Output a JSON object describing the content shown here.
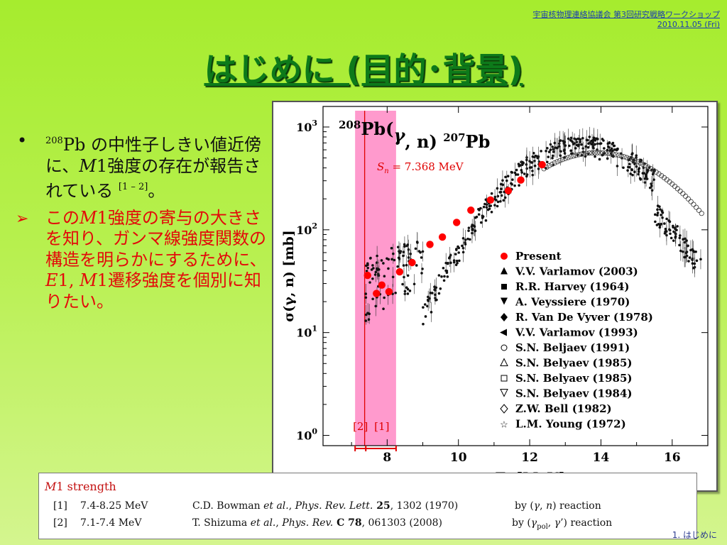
{
  "header": {
    "line1": "宇宙核物理連絡協議会 第3回研究戦略ワークショップ",
    "line2": "2010.11.05 (Fri)"
  },
  "title": "はじめに (目的･背景)",
  "bullet1": {
    "bullet": "•",
    "mass_number": "208",
    "element": "Pb",
    "text_a": " の中性子しきい値近傍に、",
    "m1": "M",
    "m1_num": "1",
    "text_b": "強度の存在が報告されている",
    "ref": "[1 – 2]",
    "end": "。"
  },
  "bullet2": {
    "arrow": "➢",
    "text_a": "この",
    "m1": "M",
    "m1_num": "1",
    "text_b": "強度の寄与の大きさを知り、ガンマ線強度関数の構造を明らかにするために、",
    "e1": "E",
    "e1_num": "1",
    "sep": ", ",
    "m1b": "M",
    "m1b_num": "1",
    "text_c": "遷移強度を個別に知りたい。"
  },
  "chart_data": {
    "type": "scatter",
    "reaction": {
      "target_mass": "208",
      "target": "Pb(",
      "gamma": "γ",
      "rest": ", n)",
      "product_mass": "207",
      "product": "Pb"
    },
    "xlabel": "E",
    "xlabel_sub": "γ",
    "xlabel_unit": " [MeV]",
    "ylabel": "σ(γ, n) [mb]",
    "xlim": [
      6.2,
      17.0
    ],
    "ylim_log10": [
      -0.1,
      3.2
    ],
    "log_y": true,
    "x_ticks": [
      "8",
      "10",
      "12",
      "14",
      "16"
    ],
    "x_tick_values": [
      8,
      10,
      12,
      14,
      16
    ],
    "y_ticks": [
      {
        "base": "10",
        "exp": "0",
        "value": 0
      },
      {
        "base": "10",
        "exp": "1",
        "value": 1
      },
      {
        "base": "10",
        "exp": "2",
        "value": 2
      },
      {
        "base": "10",
        "exp": "3",
        "value": 3
      }
    ],
    "threshold": {
      "label_s": "S",
      "label_sub": "n",
      "label_rest": " = 7.368 MeV",
      "x": 7.368
    },
    "band": {
      "x0": 7.1,
      "x1": 8.25
    },
    "band_labels": {
      "ref2": "[2]",
      "ref1": "[1]"
    },
    "legend_placement": "right",
    "present_series": {
      "name": "Present",
      "color": "#ff0000",
      "points": [
        [
          7.45,
          36
        ],
        [
          7.7,
          24
        ],
        [
          7.85,
          29
        ],
        [
          8.05,
          25
        ],
        [
          8.35,
          39
        ],
        [
          8.7,
          48
        ],
        [
          9.2,
          72
        ],
        [
          9.55,
          85
        ],
        [
          9.95,
          118
        ],
        [
          10.35,
          155
        ],
        [
          10.9,
          195
        ],
        [
          11.4,
          240
        ],
        [
          11.75,
          305
        ],
        [
          12.35,
          430
        ]
      ]
    },
    "legend": [
      {
        "name": "Present",
        "marker": "circle-red"
      },
      {
        "name": "V.V. Varlamov (2003)",
        "marker": "tri-up"
      },
      {
        "name": "R.R. Harvey (1964)",
        "marker": "square"
      },
      {
        "name": "A. Veyssiere (1970)",
        "marker": "tri-down"
      },
      {
        "name": "R. Van De Vyver (1978)",
        "marker": "diamond"
      },
      {
        "name": "V.V. Varlamov (1993)",
        "marker": "tri-left"
      },
      {
        "name": "S.N. Beljaev (1991)",
        "marker": "circle-open"
      },
      {
        "name": "S.N. Belyaev (1985)",
        "marker": "tri-open"
      },
      {
        "name": "S.N. Belyaev (1985)",
        "marker": "square-open"
      },
      {
        "name": "S.N. Belyaev (1984)",
        "marker": "tri-down-open"
      },
      {
        "name": "Z.W. Bell (1982)",
        "marker": "diamond-open"
      },
      {
        "name": "L.M. Young (1972)",
        "marker": "star"
      }
    ]
  },
  "refs": {
    "heading_m": "M",
    "heading_rest": "1 strength",
    "r1": {
      "num": "[1]",
      "range": "7.4-8.25 MeV",
      "author": "C.D. Bowman ",
      "etal": "et al.",
      "sep": ", ",
      "journal": "Phys. Rev. Lett.",
      "vol": " 25",
      "rest": ", 1302 (1970)",
      "by_a": "by (",
      "g": "γ",
      "by_b": ", ",
      "n": "n",
      "by_c": ") reaction"
    },
    "r2": {
      "num": "[2]",
      "range": "7.1-7.4 MeV",
      "author": "T. Shizuma ",
      "etal": "et al.",
      "sep": ", ",
      "journal": "Phys. Rev.",
      "vol": " C 78",
      "rest": ", 061303 (2008)",
      "by_a": "by (",
      "g": "γ",
      "pol": "pol",
      "by_b": ", ",
      "g2": "γ",
      "by_c": "’) reaction"
    }
  },
  "page_label": "1. はじめに"
}
